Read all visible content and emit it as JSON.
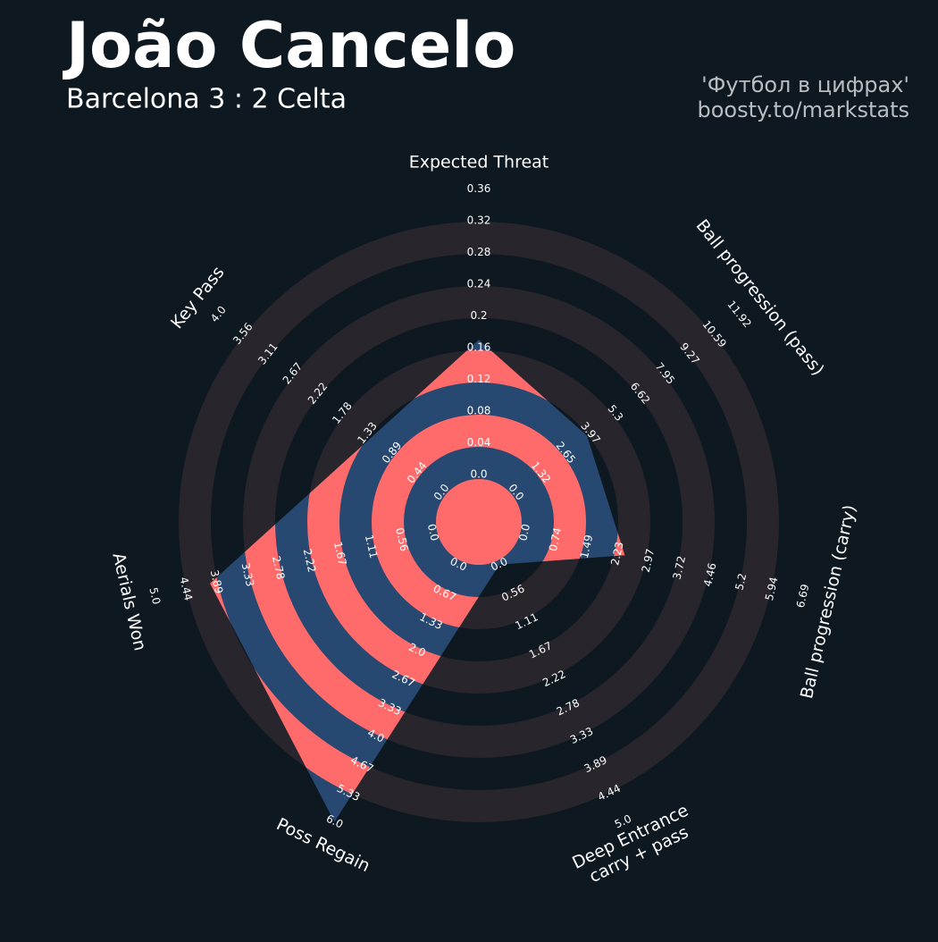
{
  "chart_data": {
    "type": "radar",
    "title": "João Cancelo",
    "subtitle": "Barcelona 3 : 2 Celta",
    "credits": [
      "'Футбол в цифрах'",
      "boosty.to/markstats"
    ],
    "params": [
      "Expected Threat",
      "Ball progression (pass)",
      "Ball progression (carry)",
      [
        "Deep Entrance",
        "carry + pass"
      ],
      "Poss Regain",
      "Aerials Won",
      "Key Pass"
    ],
    "axes": [
      {
        "lim": [
          0,
          0.36
        ],
        "ticks": [
          {
            "value": 0,
            "label": "0.0"
          },
          0.04,
          0.08,
          0.12,
          0.16,
          0.2,
          0.24,
          0.28,
          0.32,
          0.36
        ]
      },
      {
        "lim": [
          0,
          11.92
        ],
        "ticks": [
          {
            "value": 0,
            "label": "0.0"
          },
          1.32,
          2.65,
          3.97,
          5.3,
          6.62,
          7.95,
          9.27,
          10.59,
          11.92
        ]
      },
      {
        "lim": [
          0,
          6.69
        ],
        "ticks": [
          {
            "value": 0,
            "label": "0.0"
          },
          0.74,
          1.49,
          2.23,
          2.97,
          3.72,
          4.46,
          5.2,
          5.94,
          6.69
        ]
      },
      {
        "lim": [
          0,
          5
        ],
        "ticks": [
          {
            "value": 0,
            "label": "0.0"
          },
          0.56,
          1.11,
          1.67,
          2.22,
          2.78,
          3.33,
          3.89,
          4.44,
          {
            "value": 5,
            "label": "5.0"
          }
        ]
      },
      {
        "lim": [
          0,
          6
        ],
        "ticks": [
          {
            "value": 0,
            "label": "0.0"
          },
          0.67,
          1.33,
          {
            "value": 2,
            "label": "2.0"
          },
          2.67,
          3.33,
          {
            "value": 4,
            "label": "4.0"
          },
          4.67,
          5.33,
          {
            "value": 6,
            "label": "6.0"
          }
        ]
      },
      {
        "lim": [
          0,
          5
        ],
        "ticks": [
          {
            "value": 0,
            "label": "0.0"
          },
          0.56,
          1.11,
          1.67,
          2.22,
          2.78,
          3.33,
          3.89,
          4.44,
          {
            "value": 5,
            "label": "5.0"
          }
        ]
      },
      {
        "lim": [
          0,
          4
        ],
        "ticks": [
          {
            "value": 0,
            "label": "0.0"
          },
          0.44,
          0.89,
          1.33,
          1.78,
          2.22,
          2.67,
          3.11,
          3.56,
          {
            "value": 4,
            "label": "4.0"
          }
        ]
      }
    ],
    "series": [
      {
        "values": [
          0.17,
          3.8,
          2.4,
          0,
          6,
          4.0,
          1.25
        ],
        "color": "#274870",
        "ring_color": "#ff6b6b"
      }
    ],
    "ring_color": "#28252c"
  }
}
